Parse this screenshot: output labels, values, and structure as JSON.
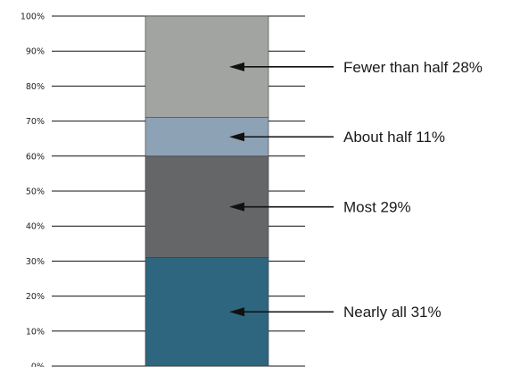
{
  "chart_data": {
    "type": "bar",
    "stacked": true,
    "title": "",
    "xlabel": "",
    "ylabel": "",
    "ylim": [
      0,
      100
    ],
    "y_ticks": [
      "0%",
      "10%",
      "20%",
      "30%",
      "40%",
      "50%",
      "60%",
      "70%",
      "80%",
      "90%",
      "100%"
    ],
    "grid": true,
    "segments": [
      {
        "label": "Nearly all 31%",
        "value": 31,
        "color": "#2e6680"
      },
      {
        "label": "Most 29%",
        "value": 29,
        "color": "#646668"
      },
      {
        "label": "About half 11%",
        "value": 11,
        "color": "#8ea2b5"
      },
      {
        "label": "Fewer than half 28%",
        "value": 28,
        "color": "#a2a4a2"
      }
    ]
  }
}
